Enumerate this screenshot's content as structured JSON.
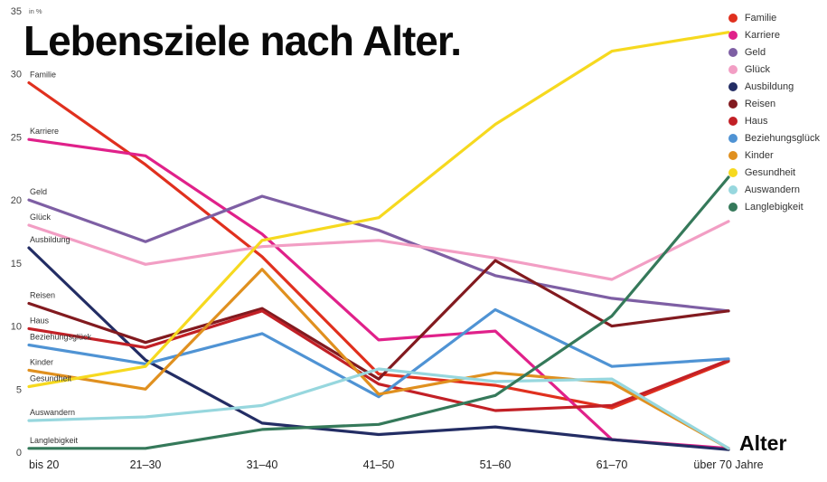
{
  "page": {
    "title": "Lebensziele nach Alter.",
    "x_axis_title": "Alter",
    "y_axis_note": "in %"
  },
  "chart_data": {
    "type": "line",
    "title": "Lebensziele nach Alter.",
    "xlabel": "Alter",
    "ylabel": "in %",
    "ylim": [
      0,
      35
    ],
    "yticks": [
      0,
      5,
      10,
      15,
      20,
      25,
      30,
      35
    ],
    "grid": false,
    "legend_position": "top-right",
    "categories": [
      "bis 20",
      "21–30",
      "31–40",
      "41–50",
      "51–60",
      "61–70",
      "über 70 Jahre"
    ],
    "series": [
      {
        "name": "Familie",
        "color": "#e0301e",
        "values": [
          29.3,
          22.8,
          15.5,
          6.2,
          5.3,
          3.5,
          7.2
        ]
      },
      {
        "name": "Karriere",
        "color": "#e0218a",
        "values": [
          24.8,
          23.5,
          17.3,
          8.9,
          9.6,
          1.0,
          0.3
        ]
      },
      {
        "name": "Geld",
        "color": "#7e5fa4",
        "values": [
          20.0,
          16.7,
          20.3,
          17.6,
          14.0,
          12.2,
          11.2
        ]
      },
      {
        "name": "Glück",
        "color": "#f29ec4",
        "values": [
          18.0,
          14.9,
          16.3,
          16.8,
          15.4,
          13.7,
          18.3
        ]
      },
      {
        "name": "Ausbildung",
        "color": "#232d64",
        "values": [
          16.2,
          7.3,
          2.3,
          1.4,
          2.0,
          1.0,
          0.2
        ]
      },
      {
        "name": "Reisen",
        "color": "#821a1f",
        "values": [
          11.8,
          8.7,
          11.4,
          5.8,
          15.2,
          10.0,
          11.2
        ]
      },
      {
        "name": "Haus",
        "color": "#c22026",
        "values": [
          9.8,
          8.3,
          11.2,
          5.4,
          3.3,
          3.7,
          7.3
        ]
      },
      {
        "name": "Beziehungsglück",
        "color": "#4f93d4",
        "values": [
          8.5,
          7.0,
          9.4,
          4.4,
          11.3,
          6.8,
          7.4
        ]
      },
      {
        "name": "Kinder",
        "color": "#e0901f",
        "values": [
          6.5,
          5.0,
          14.5,
          4.6,
          6.3,
          5.5,
          0.3
        ]
      },
      {
        "name": "Gesundheit",
        "color": "#f6d91f",
        "values": [
          5.2,
          6.8,
          16.8,
          18.6,
          26.0,
          31.8,
          33.3
        ]
      },
      {
        "name": "Auswandern",
        "color": "#97d7de",
        "values": [
          2.5,
          2.8,
          3.7,
          6.6,
          5.6,
          5.8,
          0.3
        ]
      },
      {
        "name": "Langlebigkeit",
        "color": "#35795a",
        "values": [
          0.3,
          0.3,
          1.8,
          2.2,
          4.5,
          10.8,
          21.8
        ]
      }
    ]
  }
}
